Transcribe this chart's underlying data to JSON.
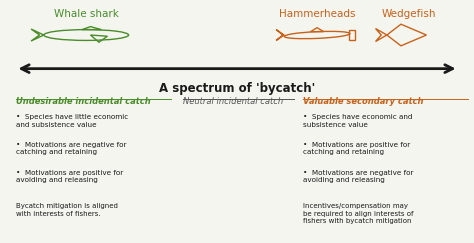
{
  "bg_color": "#f5f5f0",
  "arrow_color": "#1a1a1a",
  "green_color": "#4a8c2a",
  "orange_color": "#c8621a",
  "black_color": "#1a1a1a",
  "gray_color": "#555555",
  "whale_shark_label": "Whale shark",
  "hammerheads_label": "Hammerheads",
  "wedgefish_label": "Wedgefish",
  "arrow_label": "A spectrum of 'bycatch'",
  "left_heading": "Undesirable incidental catch",
  "mid_heading": "Neutral incidental catch",
  "right_heading": "Valuable secondary catch",
  "left_bullets": [
    "Species have little economic\nand subsistence value",
    "Motivations are negative for\ncatching and retaining",
    "Motivations are positive for\navoiding and releasing"
  ],
  "right_bullets": [
    "Species have economic and\nsubsistence value",
    "Motivations are positive for\ncatching and retaining",
    "Motivations are negative for\navoiding and releasing"
  ],
  "left_footer": "Bycatch mitigation is aligned\nwith interests of fishers.",
  "right_footer": "Incentives/compensation may\nbe required to align interests of\nfishers with bycatch mitigation"
}
